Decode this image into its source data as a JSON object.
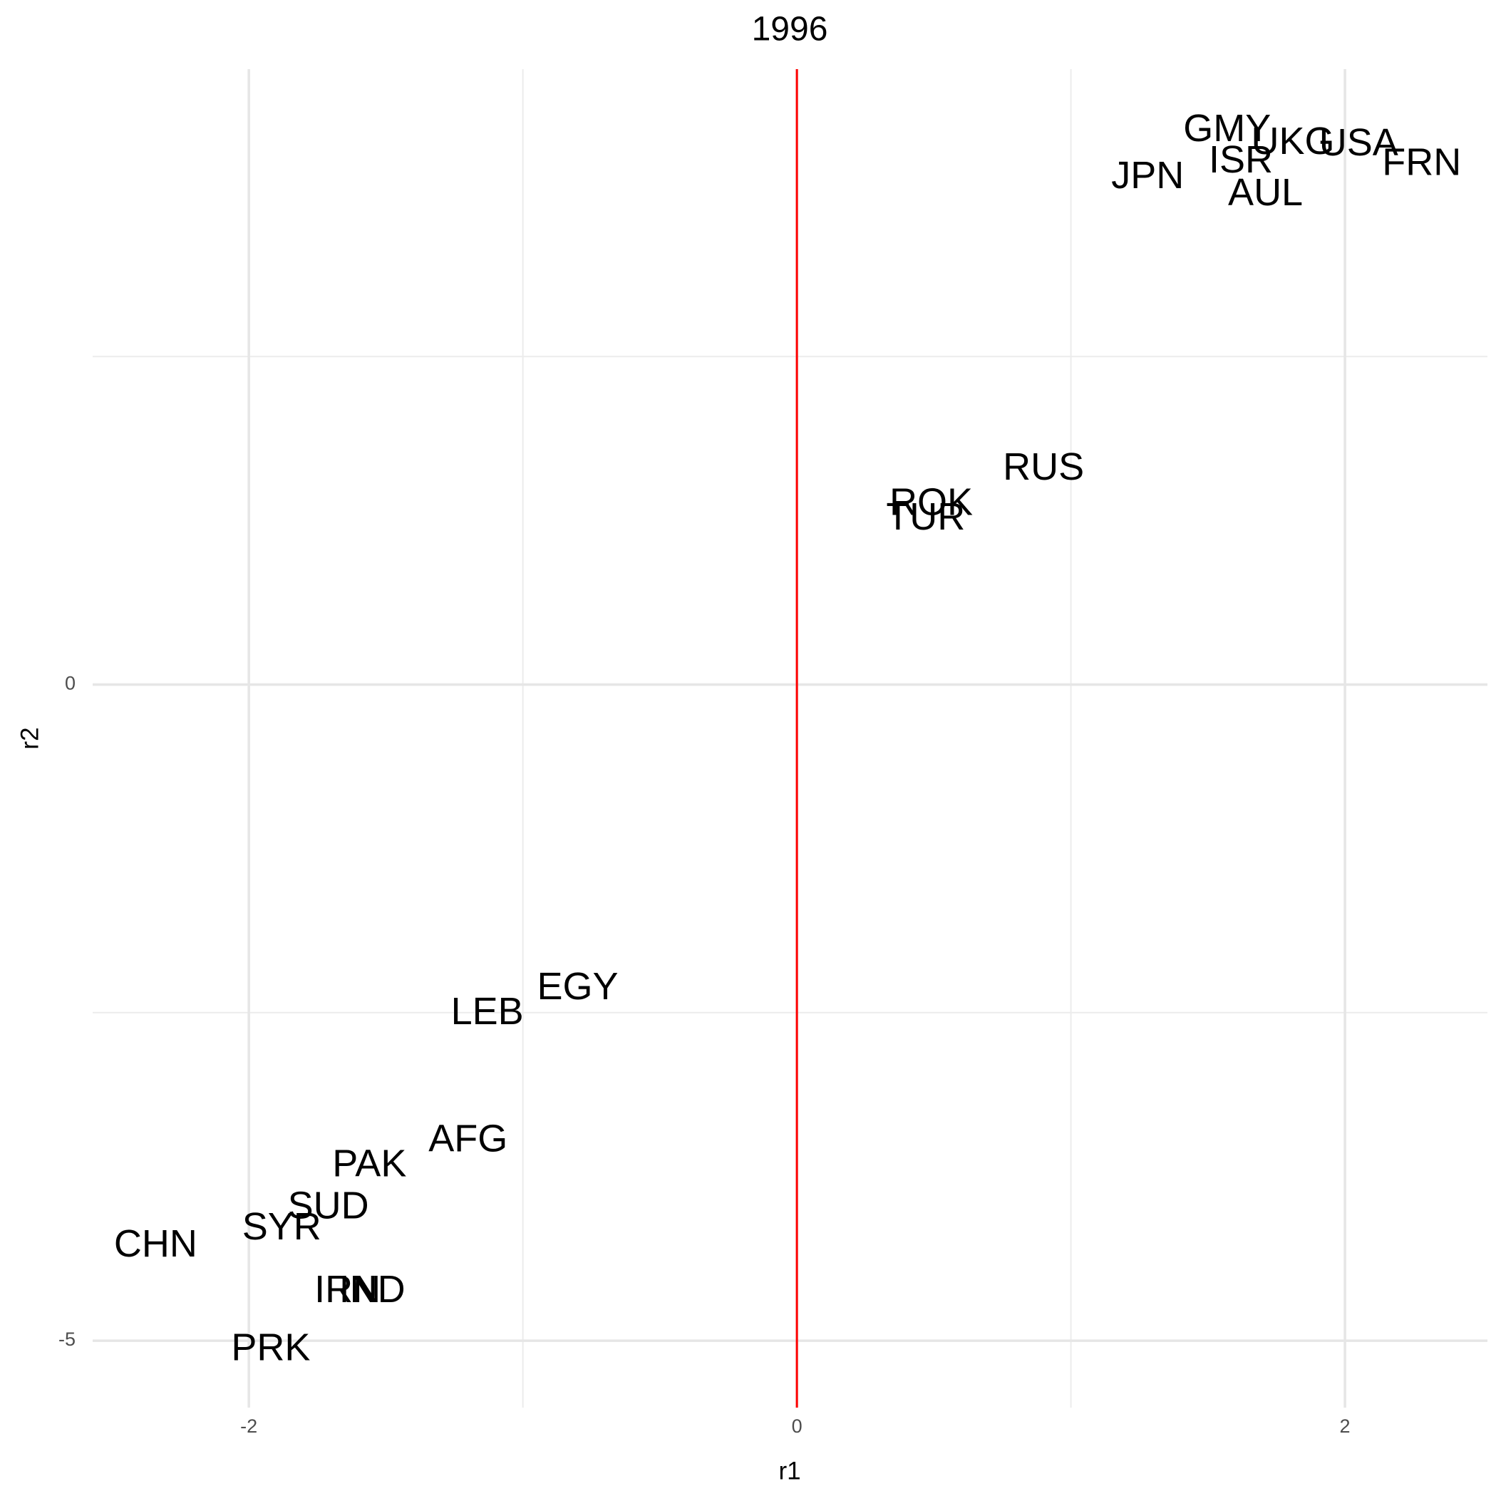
{
  "chart_data": {
    "type": "text-scatter",
    "title": "1996",
    "x_label": "r1",
    "y_label": "r2",
    "labels": [
      "GMY",
      "UKG",
      "USA",
      "FRN",
      "ISR",
      "JPN",
      "AUL",
      "RUS",
      "ROK",
      "TUR",
      "EGY",
      "LEB",
      "AFG",
      "PAK",
      "SUD",
      "SYR",
      "CHN",
      "IRN",
      "IND",
      "PRK"
    ],
    "x": [
      1.57,
      1.81,
      2.05,
      2.28,
      1.62,
      1.28,
      1.71,
      0.9,
      0.49,
      0.47,
      -0.8,
      -1.13,
      -1.2,
      -1.56,
      -1.71,
      -1.88,
      -2.34,
      -1.64,
      -1.55,
      -1.92
    ],
    "y": [
      4.22,
      4.12,
      4.11,
      3.96,
      3.98,
      3.86,
      3.73,
      1.64,
      1.37,
      1.26,
      -2.32,
      -2.51,
      -3.48,
      -3.67,
      -3.99,
      -4.15,
      -4.28,
      -4.63,
      -4.63,
      -5.07
    ],
    "color": "#000000",
    "xlim": [
      -2.57,
      2.52
    ],
    "ylim": [
      -5.51,
      4.69
    ],
    "xticks": [
      -2,
      0,
      2
    ],
    "yticks": [
      -5,
      0
    ],
    "xminor": [
      -1,
      1
    ],
    "yminor": [
      -2.5,
      2.5
    ],
    "grid": true,
    "vline": 0,
    "vline_color": "#ff0000"
  }
}
